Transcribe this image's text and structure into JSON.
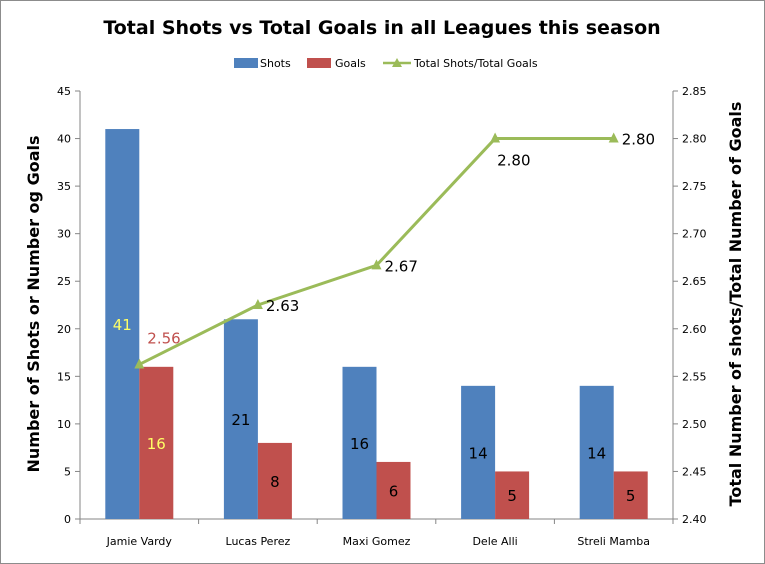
{
  "chart_data": {
    "type": "bar",
    "title": "Total Shots vs Total Goals in all Leagues this season",
    "categories": [
      "Jamie Vardy",
      "Lucas Perez",
      "Maxi Gomez",
      "Dele Alli",
      "Streli Mamba"
    ],
    "series": [
      {
        "name": "Shots",
        "kind": "bar",
        "axis": "left",
        "color": "#4f81bd",
        "values": [
          41,
          21,
          16,
          14,
          14
        ],
        "labels": [
          "41",
          "21",
          "16",
          "14",
          "14"
        ],
        "label_colors": [
          "#ffff66",
          "#000000",
          "#000000",
          "#000000",
          "#000000"
        ]
      },
      {
        "name": "Goals",
        "kind": "bar",
        "axis": "left",
        "color": "#c0504d",
        "values": [
          16,
          8,
          6,
          5,
          5
        ],
        "labels": [
          "16",
          "8",
          "6",
          "5",
          "5"
        ],
        "label_colors": [
          "#ffff66",
          "#000000",
          "#000000",
          "#000000",
          "#000000"
        ]
      },
      {
        "name": "Total Shots/Total  Goals",
        "kind": "line",
        "axis": "right",
        "color": "#9bbb59",
        "values": [
          2.5625,
          2.625,
          2.6667,
          2.8,
          2.8
        ],
        "labels": [
          "2.56",
          "2.63",
          "2.67",
          "2.80",
          "2.80"
        ],
        "label_colors": [
          "#c0504d",
          "#000000",
          "#000000",
          "#000000",
          "#000000"
        ]
      }
    ],
    "ylabel": "Number of Shots or Number og Goals",
    "y2label": "Total Number of shots/Total  Number of Goals",
    "ylim": [
      0,
      45
    ],
    "y2lim": [
      2.4,
      2.85
    ],
    "yticks": [
      "0",
      "5",
      "10",
      "15",
      "20",
      "25",
      "30",
      "35",
      "40",
      "45"
    ],
    "y2ticks": [
      "2.40",
      "2.45",
      "2.50",
      "2.55",
      "2.60",
      "2.65",
      "2.70",
      "2.75",
      "2.80",
      "2.85"
    ],
    "grid": false,
    "legend_position": "top"
  }
}
